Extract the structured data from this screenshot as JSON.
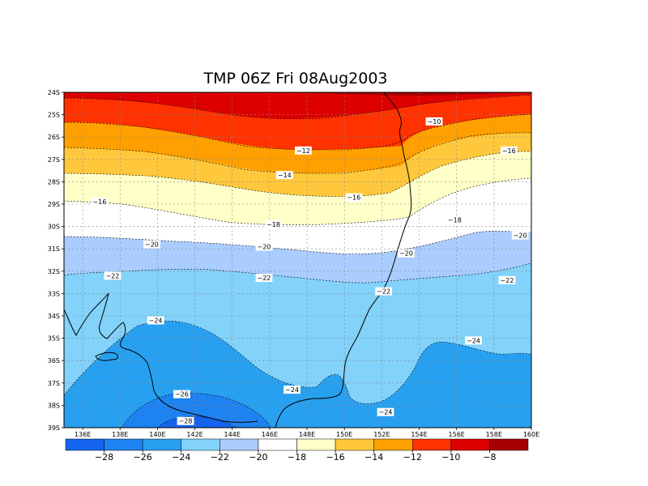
{
  "title": "TMP 06Z Fri 08Aug2003",
  "lon_ticks": [
    "136E",
    "138E",
    "140E",
    "142E",
    "144E",
    "146E",
    "148E",
    "150E",
    "152E",
    "154E",
    "156E",
    "158E",
    "160E"
  ],
  "lat_ticks": [
    "24S",
    "25S",
    "26S",
    "27S",
    "28S",
    "29S",
    "30S",
    "31S",
    "32S",
    "33S",
    "34S",
    "35S",
    "36S",
    "37S",
    "38S",
    "39S"
  ],
  "colorbar": {
    "colors": [
      "#1464f0",
      "#1e82f0",
      "#28a0f0",
      "#82d2fa",
      "#aaccff",
      "#ffffff",
      "#ffffc8",
      "#ffc83c",
      "#ffa000",
      "#ff3200",
      "#dc0000",
      "#a50000"
    ],
    "labels": [
      "-28",
      "-26",
      "-24",
      "-22",
      "-20",
      "-18",
      "-16",
      "-14",
      "-12",
      "-10",
      "-8"
    ]
  },
  "contour_labels": [
    {
      "text": "-10",
      "lon": 154.8,
      "lat": -25.3
    },
    {
      "text": "-12",
      "lon": 147.8,
      "lat": -26.6
    },
    {
      "text": "-16",
      "lon": 158.8,
      "lat": -26.6
    },
    {
      "text": "-14",
      "lon": 146.8,
      "lat": -27.7
    },
    {
      "text": "-16",
      "lon": 150.5,
      "lat": -28.7
    },
    {
      "text": "-16",
      "lon": 136.9,
      "lat": -28.9
    },
    {
      "text": "-18",
      "lon": 155.9,
      "lat": -29.7
    },
    {
      "text": "-18",
      "lon": 146.2,
      "lat": -29.9
    },
    {
      "text": "-20",
      "lon": 159.4,
      "lat": -30.4
    },
    {
      "text": "-20",
      "lon": 139.7,
      "lat": -30.8
    },
    {
      "text": "-20",
      "lon": 145.7,
      "lat": -30.9
    },
    {
      "text": "-20",
      "lon": 153.3,
      "lat": -31.2
    },
    {
      "text": "-22",
      "lon": 137.6,
      "lat": -32.2
    },
    {
      "text": "-22",
      "lon": 145.7,
      "lat": -32.3
    },
    {
      "text": "-22",
      "lon": 158.7,
      "lat": -32.4
    },
    {
      "text": "-22",
      "lon": 152.1,
      "lat": -32.9
    },
    {
      "text": "-24",
      "lon": 139.9,
      "lat": -34.2
    },
    {
      "text": "-24",
      "lon": 156.9,
      "lat": -35.1
    },
    {
      "text": "-24",
      "lon": 147.2,
      "lat": -37.3
    },
    {
      "text": "-26",
      "lon": 141.3,
      "lat": -37.5
    },
    {
      "text": "-24",
      "lon": 152.2,
      "lat": -38.3
    },
    {
      "text": "-28",
      "lon": 141.5,
      "lat": -38.7
    }
  ]
}
